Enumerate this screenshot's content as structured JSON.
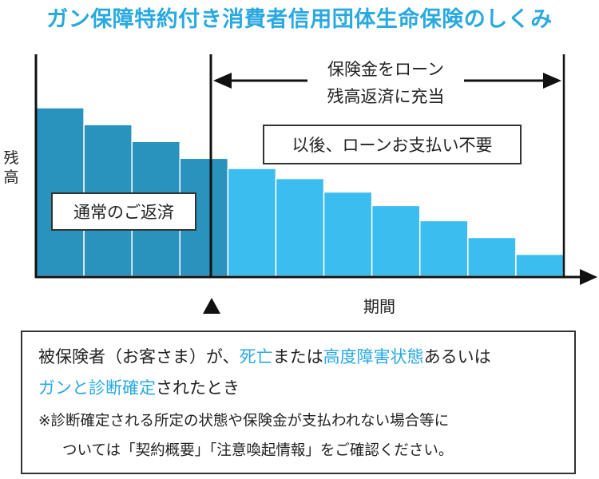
{
  "title": "ガン保障特約付き消費者信用団体生命保険のしくみ",
  "y_axis_label": "残高",
  "x_axis_label": "期間",
  "callouts": {
    "normal_repayment": "通常のご返済",
    "no_payment_after": "以後、ローンお支払い不要",
    "insurance_line1": "保険金をローン",
    "insurance_line2": "残高返済に充当"
  },
  "colors": {
    "before_bars": "#2992bd",
    "after_bars": "#3cbdf0",
    "highlight": "#29a9e0"
  },
  "icons": {
    "event_marker": "triangle-up-icon",
    "period_arrow": "double-arrow-icon"
  },
  "chart_data": {
    "type": "bar",
    "ylim": [
      0,
      100
    ],
    "event_after_index": 4,
    "values": [
      100,
      90,
      80,
      70,
      64,
      58,
      50,
      42,
      33,
      23,
      13
    ]
  },
  "conditions": {
    "line1_a": "被保険者（お客さま）が、",
    "line1_b": "死亡",
    "line1_c": "または",
    "line1_d": "高度障害状態",
    "line1_e": "あるいは",
    "line2_a": "ガンと診断確定",
    "line2_b": "されたとき",
    "note_line1": "※診断確定される所定の状態や保険金が支払われない場合等に",
    "note_line2": "ついては「契約概要」「注意喚起情報」をご確認ください。"
  }
}
